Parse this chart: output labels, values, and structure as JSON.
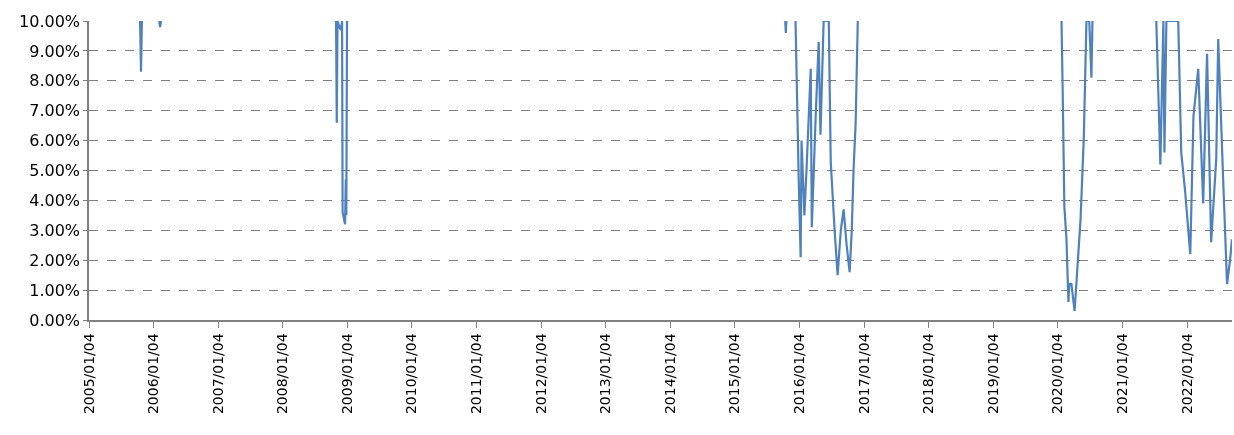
{
  "chart_data": {
    "type": "line",
    "grid": "y",
    "marker": "none",
    "line_style": "solid",
    "xlim": [
      "2005-01-04",
      "2022-09-15"
    ],
    "xticks": [
      {
        "value": "2005-01-04",
        "label": "2005/01/04"
      },
      {
        "value": "2006-01-04",
        "label": "2006/01/04"
      },
      {
        "value": "2007-01-04",
        "label": "2007/01/04"
      },
      {
        "value": "2008-01-04",
        "label": "2008/01/04"
      },
      {
        "value": "2009-01-04",
        "label": "2009/01/04"
      },
      {
        "value": "2010-01-04",
        "label": "2010/01/04"
      },
      {
        "value": "2011-01-04",
        "label": "2011/01/04"
      },
      {
        "value": "2012-01-04",
        "label": "2012/01/04"
      },
      {
        "value": "2013-01-04",
        "label": "2013/01/04"
      },
      {
        "value": "2014-01-04",
        "label": "2014/01/04"
      },
      {
        "value": "2015-01-04",
        "label": "2015/01/04"
      },
      {
        "value": "2016-01-04",
        "label": "2016/01/04"
      },
      {
        "value": "2017-01-04",
        "label": "2017/01/04"
      },
      {
        "value": "2018-01-04",
        "label": "2018/01/04"
      },
      {
        "value": "2019-01-04",
        "label": "2019/01/04"
      },
      {
        "value": "2020-01-04",
        "label": "2020/01/04"
      },
      {
        "value": "2021-01-04",
        "label": "2021/01/04"
      },
      {
        "value": "2022-01-04",
        "label": "2022/01/04"
      }
    ],
    "ylim": [
      0,
      10
    ],
    "yticks": [
      {
        "value": 0,
        "label": "0.00%"
      },
      {
        "value": 1,
        "label": "1.00%"
      },
      {
        "value": 2,
        "label": "2.00%"
      },
      {
        "value": 3,
        "label": "3.00%"
      },
      {
        "value": 4,
        "label": "4.00%"
      },
      {
        "value": 5,
        "label": "5.00%"
      },
      {
        "value": 6,
        "label": "6.00%"
      },
      {
        "value": 7,
        "label": "7.00%"
      },
      {
        "value": 8,
        "label": "8.00%"
      },
      {
        "value": 9,
        "label": "9.00%"
      },
      {
        "value": 10,
        "label": "10.00%"
      }
    ],
    "series": [
      {
        "color": "#4f81bd",
        "x": [
          "2005-10-20",
          "2005-10-25",
          "2005-10-30",
          "2005-12-01",
          "2006-02-05",
          "2006-02-10",
          "2006-02-15",
          "2007-06-01",
          "2008-11-01",
          "2008-11-05",
          "2008-11-09",
          "2008-11-20",
          "2008-11-28",
          "2008-12-05",
          "2008-12-08",
          "2008-12-15",
          "2008-12-22",
          "2008-12-26",
          "2008-12-29",
          "2009-01-02",
          "2012-01-01",
          "2015-10-16",
          "2015-10-19",
          "2015-10-22",
          "2015-11-20",
          "2015-12-13",
          "2015-12-31",
          "2016-01-11",
          "2016-01-16",
          "2016-02-01",
          "2016-02-13",
          "2016-03-08",
          "2016-03-14",
          "2016-04-06",
          "2016-04-22",
          "2016-05-02",
          "2016-05-20",
          "2016-06-07",
          "2016-06-18",
          "2016-06-29",
          "2016-07-21",
          "2016-08-07",
          "2016-08-25",
          "2016-09-10",
          "2016-09-27",
          "2016-10-14",
          "2016-10-26",
          "2016-11-05",
          "2016-11-17",
          "2016-11-29",
          "2018-06-01",
          "2020-01-25",
          "2020-01-31",
          "2020-02-10",
          "2020-02-22",
          "2020-03-04",
          "2020-03-09",
          "2020-03-21",
          "2020-04-08",
          "2020-04-19",
          "2020-05-12",
          "2020-05-30",
          "2020-06-14",
          "2020-06-30",
          "2020-07-12",
          "2020-07-18",
          "2021-01-01",
          "2021-07-14",
          "2021-08-06",
          "2021-08-23",
          "2021-08-29",
          "2021-09-09",
          "2021-09-26",
          "2021-11-15",
          "2021-12-02",
          "2021-12-24",
          "2022-01-22",
          "2022-02-09",
          "2022-03-08",
          "2022-04-05",
          "2022-04-27",
          "2022-05-20",
          "2022-06-18",
          "2022-06-29",
          "2022-07-27",
          "2022-08-18",
          "2022-09-04",
          "2022-09-15"
        ],
        "values": [
          10,
          8.3,
          10,
          null,
          10,
          9.8,
          10,
          null,
          10,
          6.6,
          10,
          9.8,
          9.7,
          10,
          3.6,
          3.4,
          3.2,
          4.7,
          3.5,
          10,
          null,
          10,
          9.6,
          10,
          null,
          10,
          4.7,
          2.1,
          6.0,
          3.5,
          5.0,
          8.4,
          3.1,
          7.0,
          9.3,
          6.2,
          10,
          10,
          10,
          5.3,
          3.0,
          1.5,
          3.0,
          3.7,
          2.5,
          1.6,
          3.0,
          5.0,
          6.6,
          10,
          null,
          10,
          7.9,
          3.8,
          2.7,
          0.6,
          1.2,
          1.2,
          0.3,
          1.3,
          3.4,
          6.1,
          10,
          10,
          8.1,
          10,
          null,
          10,
          5.2,
          10,
          5.6,
          10,
          10,
          10,
          5.6,
          4.3,
          2.2,
          6.8,
          8.4,
          3.9,
          8.9,
          2.6,
          5.4,
          9.4,
          4.7,
          1.2,
          2.0,
          2.7
        ]
      }
    ]
  }
}
